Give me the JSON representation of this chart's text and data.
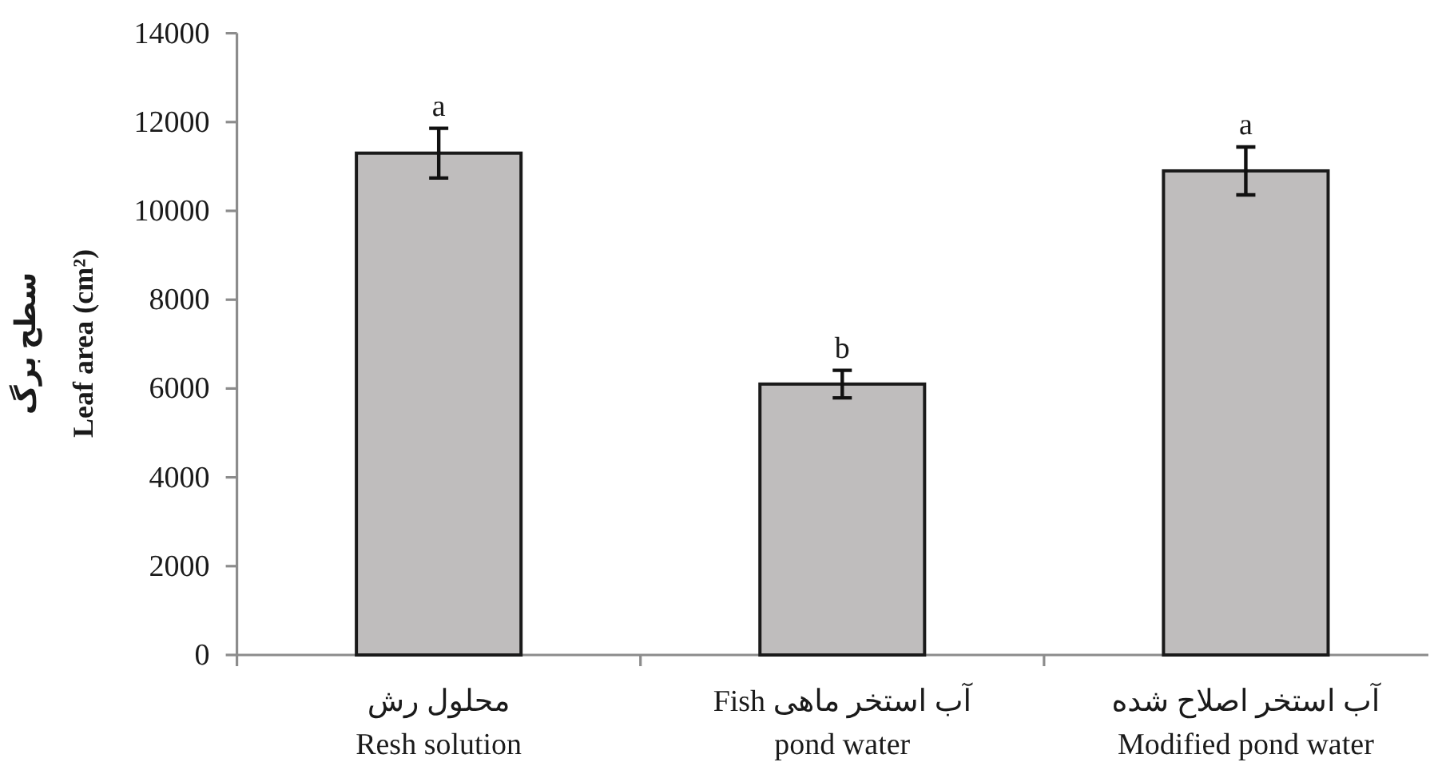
{
  "chart_data": {
    "type": "bar",
    "categories": [
      "محلول رش\nResh solution",
      "آب استخر ماهی Fish\npond water",
      "آب استخر اصلاح شده\nModified pond water"
    ],
    "values": [
      11300,
      6100,
      10900
    ],
    "errors": [
      560,
      310,
      540
    ],
    "value_labels": [
      "a",
      "b",
      "a"
    ],
    "color": "#bfbdbd",
    "ylabel": "سطح برگ\nLeaf area (cm²)",
    "ylim": [
      0,
      14000
    ],
    "yticks": [
      0,
      2000,
      4000,
      6000,
      8000,
      10000,
      12000,
      14000
    ]
  }
}
